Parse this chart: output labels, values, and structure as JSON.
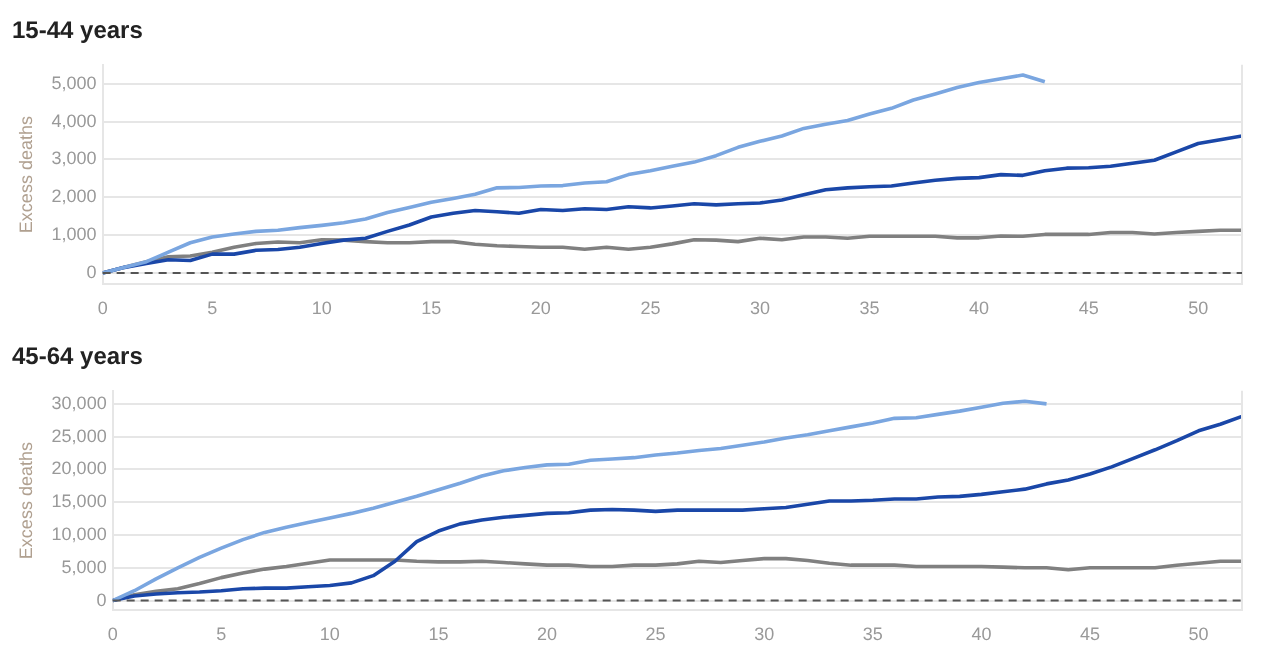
{
  "chart_data": [
    {
      "type": "line",
      "title": "15-44 years",
      "ylabel": "Excess deaths",
      "xlim": [
        0,
        52
      ],
      "xticks": [
        0,
        5,
        10,
        15,
        20,
        25,
        30,
        35,
        40,
        45,
        50
      ],
      "ylim": [
        -300,
        5500
      ],
      "yticks": [
        0,
        {
          "value": 1000,
          "label": "1,000"
        },
        {
          "value": 2000,
          "label": "2,000"
        },
        {
          "value": 3000,
          "label": "3,000"
        },
        {
          "value": 4000,
          "label": "4,000"
        },
        {
          "value": 5000,
          "label": "5,000"
        }
      ],
      "grid": "y",
      "legend": false,
      "marker": "none",
      "line_style": "solid",
      "ref_lines": [
        {
          "axis": "y",
          "value": 0,
          "line_style": "dashed",
          "color": "#555555"
        }
      ],
      "series": [
        {
          "color": "#7aa6e0",
          "x": [
            0,
            1,
            2,
            3,
            4,
            5,
            6,
            7,
            8,
            9,
            10,
            11,
            12,
            13,
            14,
            15,
            16,
            17,
            18,
            19,
            20,
            21,
            22,
            23,
            24,
            25,
            26,
            27,
            28,
            29,
            30,
            31,
            32,
            33,
            34,
            35,
            36,
            37,
            38,
            39,
            40,
            41,
            42,
            43
          ],
          "values": [
            0,
            150,
            300,
            550,
            800,
            950,
            1030,
            1100,
            1130,
            1200,
            1260,
            1330,
            1430,
            1600,
            1730,
            1870,
            1970,
            2080,
            2250,
            2260,
            2300,
            2310,
            2380,
            2410,
            2600,
            2700,
            2820,
            2930,
            3100,
            3320,
            3480,
            3620,
            3820,
            3930,
            4030,
            4200,
            4350,
            4570,
            4730,
            4900,
            5030,
            5130,
            5230,
            5050
          ]
        },
        {
          "color": "#1a47a8",
          "x": [
            0,
            1,
            2,
            3,
            4,
            5,
            6,
            7,
            8,
            9,
            10,
            11,
            12,
            13,
            14,
            15,
            16,
            17,
            18,
            19,
            20,
            21,
            22,
            23,
            24,
            25,
            26,
            27,
            28,
            29,
            30,
            31,
            32,
            33,
            34,
            35,
            36,
            37,
            38,
            39,
            40,
            41,
            42,
            43,
            44,
            45,
            46,
            47,
            48,
            49,
            50,
            51,
            52
          ],
          "values": [
            0,
            150,
            250,
            350,
            330,
            500,
            500,
            600,
            620,
            680,
            780,
            870,
            920,
            1100,
            1270,
            1480,
            1580,
            1650,
            1620,
            1580,
            1680,
            1650,
            1700,
            1680,
            1750,
            1720,
            1770,
            1830,
            1800,
            1830,
            1850,
            1930,
            2070,
            2200,
            2250,
            2280,
            2300,
            2380,
            2450,
            2500,
            2520,
            2600,
            2580,
            2700,
            2770,
            2780,
            2820,
            2900,
            2980,
            3200,
            3420,
            3520,
            3620
          ]
        },
        {
          "color": "#808080",
          "x": [
            0,
            1,
            2,
            3,
            4,
            5,
            6,
            7,
            8,
            9,
            10,
            11,
            12,
            13,
            14,
            15,
            16,
            17,
            18,
            19,
            20,
            21,
            22,
            23,
            24,
            25,
            26,
            27,
            28,
            29,
            30,
            31,
            32,
            33,
            34,
            35,
            36,
            37,
            38,
            39,
            40,
            41,
            42,
            43,
            44,
            45,
            46,
            47,
            48,
            49,
            50,
            51,
            52
          ],
          "values": [
            0,
            150,
            300,
            430,
            450,
            550,
            680,
            780,
            820,
            800,
            880,
            870,
            830,
            800,
            800,
            830,
            830,
            760,
            720,
            700,
            680,
            680,
            630,
            680,
            630,
            680,
            770,
            880,
            870,
            830,
            920,
            880,
            950,
            950,
            920,
            970,
            970,
            970,
            970,
            930,
            930,
            980,
            970,
            1020,
            1020,
            1020,
            1070,
            1070,
            1030,
            1070,
            1100,
            1130,
            1130
          ]
        }
      ]
    },
    {
      "type": "line",
      "title": "45-64 years",
      "ylabel": "Excess deaths",
      "xlim": [
        0,
        52
      ],
      "xticks": [
        0,
        5,
        10,
        15,
        20,
        25,
        30,
        35,
        40,
        45,
        50
      ],
      "ylim": [
        -1500,
        32000
      ],
      "yticks": [
        0,
        {
          "value": 5000,
          "label": "5,000"
        },
        {
          "value": 10000,
          "label": "10,000"
        },
        {
          "value": 15000,
          "label": "15,000"
        },
        {
          "value": 20000,
          "label": "20,000"
        },
        {
          "value": 25000,
          "label": "25,000"
        },
        {
          "value": 30000,
          "label": "30,000"
        }
      ],
      "grid": "y",
      "legend": false,
      "marker": "none",
      "line_style": "solid",
      "ref_lines": [
        {
          "axis": "y",
          "value": 0,
          "line_style": "dashed",
          "color": "#555555"
        }
      ],
      "series": [
        {
          "color": "#7aa6e0",
          "x": [
            0,
            1,
            2,
            3,
            4,
            5,
            6,
            7,
            8,
            9,
            10,
            11,
            12,
            13,
            14,
            15,
            16,
            17,
            18,
            19,
            20,
            21,
            22,
            23,
            24,
            25,
            26,
            27,
            28,
            29,
            30,
            31,
            32,
            33,
            34,
            35,
            36,
            37,
            38,
            39,
            40,
            41,
            42,
            43
          ],
          "values": [
            0,
            1500,
            3300,
            5000,
            6600,
            8000,
            9300,
            10400,
            11200,
            11900,
            12600,
            13300,
            14100,
            15000,
            15900,
            16900,
            17900,
            19000,
            19800,
            20300,
            20700,
            20800,
            21400,
            21600,
            21800,
            22200,
            22500,
            22900,
            23200,
            23700,
            24200,
            24800,
            25300,
            25900,
            26500,
            27100,
            27800,
            27900,
            28400,
            28900,
            29500,
            30100,
            30400,
            30000
          ]
        },
        {
          "color": "#1a47a8",
          "x": [
            0,
            1,
            2,
            3,
            4,
            5,
            6,
            7,
            8,
            9,
            10,
            11,
            12,
            13,
            14,
            15,
            16,
            17,
            18,
            19,
            20,
            21,
            22,
            23,
            24,
            25,
            26,
            27,
            28,
            29,
            30,
            31,
            32,
            33,
            34,
            35,
            36,
            37,
            38,
            39,
            40,
            41,
            42,
            43,
            44,
            45,
            46,
            47,
            48,
            49,
            50,
            51,
            52
          ],
          "values": [
            0,
            700,
            1000,
            1200,
            1300,
            1500,
            1800,
            1900,
            1900,
            2100,
            2300,
            2700,
            3800,
            6000,
            9000,
            10600,
            11700,
            12300,
            12700,
            13000,
            13300,
            13400,
            13800,
            13900,
            13800,
            13600,
            13800,
            13800,
            13800,
            13800,
            14000,
            14200,
            14700,
            15200,
            15200,
            15300,
            15500,
            15500,
            15800,
            15900,
            16200,
            16600,
            17000,
            17800,
            18400,
            19300,
            20400,
            21700,
            23000,
            24400,
            25900,
            26900,
            28100
          ]
        },
        {
          "color": "#808080",
          "x": [
            0,
            1,
            2,
            3,
            4,
            5,
            6,
            7,
            8,
            9,
            10,
            11,
            12,
            13,
            14,
            15,
            16,
            17,
            18,
            19,
            20,
            21,
            22,
            23,
            24,
            25,
            26,
            27,
            28,
            29,
            30,
            31,
            32,
            33,
            34,
            35,
            36,
            37,
            38,
            39,
            40,
            41,
            42,
            43,
            44,
            45,
            46,
            47,
            48,
            49,
            50,
            51,
            52
          ],
          "values": [
            0,
            900,
            1400,
            1800,
            2600,
            3500,
            4200,
            4800,
            5200,
            5700,
            6200,
            6200,
            6200,
            6200,
            6000,
            5900,
            5900,
            6000,
            5800,
            5600,
            5400,
            5400,
            5200,
            5200,
            5400,
            5400,
            5600,
            6000,
            5800,
            6100,
            6400,
            6400,
            6100,
            5700,
            5400,
            5400,
            5400,
            5200,
            5200,
            5200,
            5200,
            5100,
            5000,
            5000,
            4700,
            5000,
            5000,
            5000,
            5000,
            5400,
            5700,
            6000,
            6000
          ]
        }
      ]
    }
  ]
}
